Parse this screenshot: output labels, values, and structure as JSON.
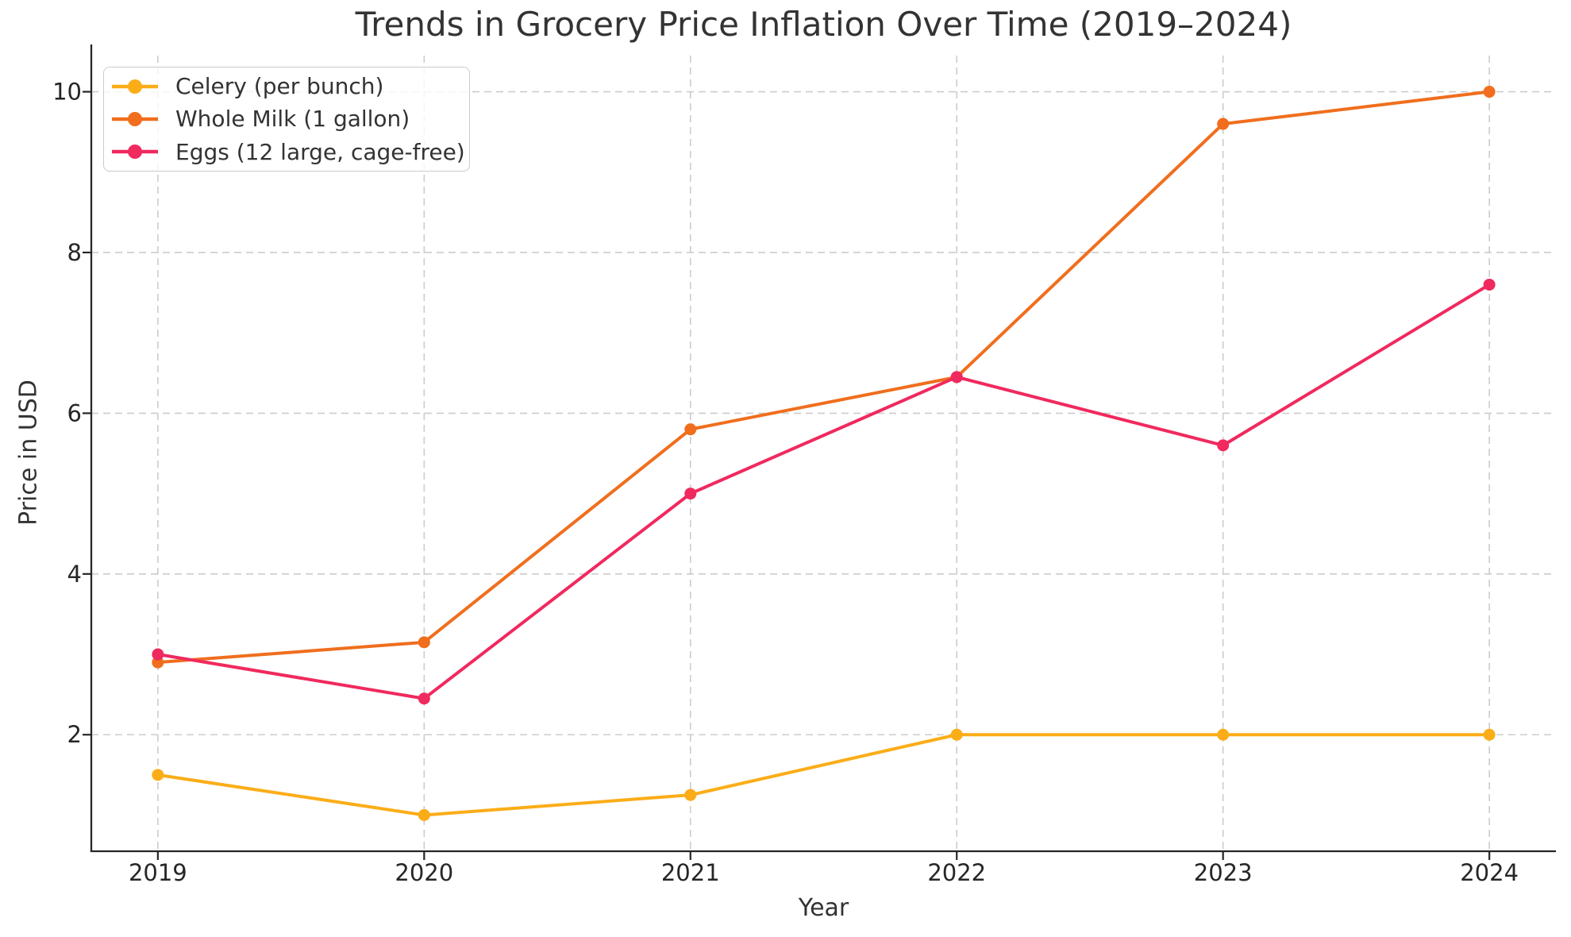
{
  "figure": {
    "background": "#FFFFFF"
  },
  "chart_data": {
    "type": "line",
    "title": "Trends in Grocery Price Inflation Over Time (2019–2024)",
    "xlabel": "Year",
    "ylabel": "Price in USD",
    "x": [
      2019,
      2020,
      2021,
      2022,
      2023,
      2024
    ],
    "x_tick_labels": [
      "2019",
      "2020",
      "2021",
      "2022",
      "2023",
      "2024"
    ],
    "series": [
      {
        "name": "Celery (per bunch)",
        "color": "#FBAD18",
        "values": [
          1.5,
          1.0,
          1.25,
          2.0,
          2.0,
          2.0
        ]
      },
      {
        "name": "Whole Milk (1 gallon)",
        "color": "#F06E1D",
        "values": [
          2.9,
          3.15,
          5.8,
          6.45,
          9.6,
          10.0
        ]
      },
      {
        "name": "Eggs (12 large, cage-free)",
        "color": "#F0295E",
        "values": [
          3.0,
          2.45,
          5.0,
          6.45,
          5.6,
          7.6
        ]
      }
    ],
    "yticks": [
      2,
      4,
      6,
      8,
      10
    ],
    "xlim": [
      2018.75,
      2024.25
    ],
    "ylim": [
      0.55,
      10.45
    ],
    "grid": {
      "visible": true,
      "style": "dashed",
      "color": "#CCCCCC"
    },
    "legend": {
      "position": "upper left"
    },
    "axis_color": "#262626",
    "text_color": "#333333"
  }
}
